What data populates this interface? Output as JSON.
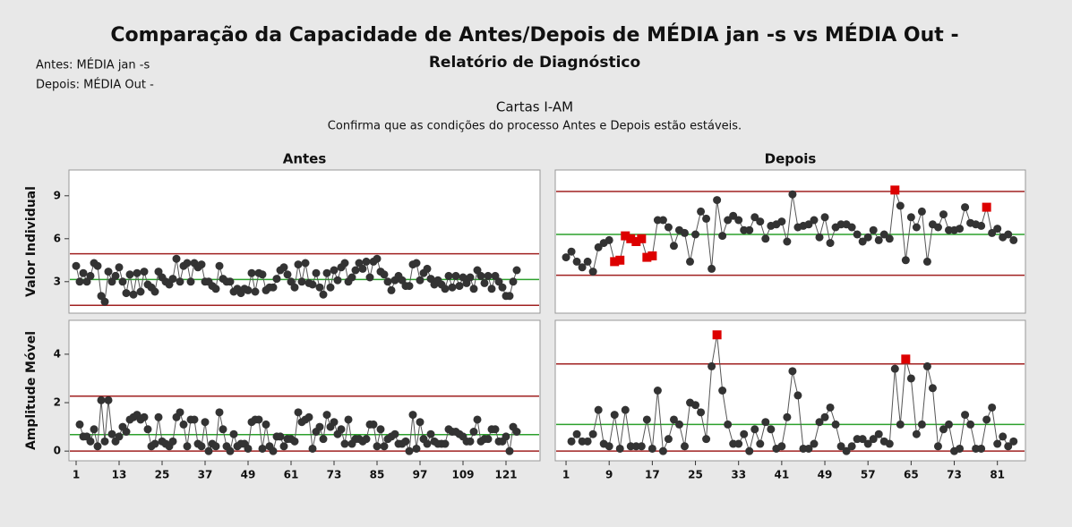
{
  "header": {
    "title": "Comparação da Capacidade de Antes/Depois de MÉDIA jan -s vs MÉDIA Out -",
    "subtitle": "Relatório de Diagnóstico",
    "before": "Antes: MÉDIA jan -s",
    "after": "Depois: MÉDIA Out -",
    "section_title": "Cartas I-AM",
    "section_subtitle": "Confirma que as condições do processo Antes e Depois estão estáveis."
  },
  "chart_data": [
    {
      "type": "line",
      "title": "Antes",
      "ylabel": "Valor Individual",
      "x": [
        1,
        2,
        3,
        4,
        5,
        6,
        7,
        8,
        9,
        10,
        11,
        12,
        13,
        14,
        15,
        16,
        17,
        18,
        19,
        20,
        21,
        22,
        23,
        24,
        25,
        26,
        27,
        28,
        29,
        30,
        31,
        32,
        33,
        34,
        35,
        36,
        37,
        38,
        39,
        40,
        41,
        42,
        43,
        44,
        45,
        46,
        47,
        48,
        49,
        50,
        51,
        52,
        53,
        54,
        55,
        56,
        57,
        58,
        59,
        60,
        61,
        62,
        63,
        64,
        65,
        66,
        67,
        68,
        69,
        70,
        71,
        72,
        73,
        74,
        75,
        76,
        77,
        78,
        79,
        80,
        81,
        82,
        83,
        84,
        85,
        86,
        87,
        88,
        89,
        90,
        91,
        92,
        93,
        94,
        95,
        96,
        97,
        98,
        99,
        100,
        101,
        102,
        103,
        104,
        105,
        106,
        107,
        108,
        109,
        110,
        111,
        112,
        113,
        114,
        115,
        116,
        117,
        118,
        119,
        120,
        121,
        122,
        123,
        124
      ],
      "series": [
        {
          "color": "#333333",
          "values": [
            4.1,
            3.0,
            3.6,
            3.0,
            3.4,
            4.3,
            4.1,
            2.0,
            1.6,
            3.7,
            3.0,
            3.4,
            4.0,
            3.0,
            2.2,
            3.5,
            2.1,
            3.6,
            2.3,
            3.7,
            2.8,
            2.6,
            2.3,
            3.7,
            3.3,
            3.0,
            2.8,
            3.2,
            4.6,
            3.0,
            4.1,
            4.3,
            3.0,
            4.3,
            4.0,
            4.2,
            3.0,
            3.0,
            2.7,
            2.5,
            4.1,
            3.2,
            3.0,
            3.0,
            2.3,
            2.5,
            2.2,
            2.5,
            2.4,
            3.6,
            2.3,
            3.6,
            3.5,
            2.4,
            2.6,
            2.6,
            3.2,
            3.8,
            4.0,
            3.5,
            3.0,
            2.6,
            4.2,
            3.0,
            4.3,
            2.9,
            2.8,
            3.6,
            2.6,
            2.1,
            3.6,
            2.6,
            3.8,
            3.1,
            4.0,
            4.3,
            3.0,
            3.3,
            3.8,
            4.3,
            3.9,
            4.4,
            3.3,
            4.4,
            4.6,
            3.7,
            3.5,
            3.0,
            2.4,
            3.1,
            3.4,
            3.1,
            2.7,
            2.7,
            4.2,
            4.3,
            3.1,
            3.6,
            3.9,
            3.2,
            2.8,
            3.1,
            2.8,
            2.5,
            3.4,
            2.6,
            3.4,
            2.7,
            3.3,
            2.9,
            3.3,
            2.5,
            3.8,
            3.4,
            2.9,
            3.4,
            2.5,
            3.4,
            3.0,
            2.6,
            2.0,
            2.0,
            3.0,
            3.8
          ]
        }
      ],
      "flagged": [],
      "flag_color": "#dd0000",
      "limits": [
        {
          "value": 4.95,
          "color": "#a02020"
        },
        {
          "value": 3.15,
          "color": "#2ca02c"
        },
        {
          "value": 1.35,
          "color": "#a02020"
        }
      ],
      "xlim": [
        -1,
        130.5
      ],
      "ylim": [
        0.8,
        10.8
      ],
      "yticks": [
        3,
        6,
        9
      ]
    },
    {
      "type": "line",
      "title": "Depois",
      "x": [
        1,
        2,
        3,
        4,
        5,
        6,
        7,
        8,
        9,
        10,
        11,
        12,
        13,
        14,
        15,
        16,
        17,
        18,
        19,
        20,
        21,
        22,
        23,
        24,
        25,
        26,
        27,
        28,
        29,
        30,
        31,
        32,
        33,
        34,
        35,
        36,
        37,
        38,
        39,
        40,
        41,
        42,
        43,
        44,
        45,
        46,
        47,
        48,
        49,
        50,
        51,
        52,
        53,
        54,
        55,
        56,
        57,
        58,
        59,
        60,
        61,
        62,
        63,
        64,
        65,
        66,
        67,
        68,
        69,
        70,
        71,
        72,
        73,
        74,
        75,
        76,
        77,
        78,
        79,
        80,
        81,
        82,
        83,
        84
      ],
      "series": [
        {
          "color": "#333333",
          "values": [
            4.7,
            5.1,
            4.4,
            4.0,
            4.4,
            3.7,
            5.4,
            5.7,
            5.9,
            4.4,
            4.5,
            6.2,
            6.0,
            5.8,
            6.0,
            4.7,
            4.8,
            7.3,
            7.3,
            6.8,
            5.5,
            6.6,
            6.4,
            4.4,
            6.3,
            7.9,
            7.4,
            3.9,
            8.7,
            6.2,
            7.3,
            7.6,
            7.3,
            6.6,
            6.6,
            7.5,
            7.2,
            6.0,
            6.9,
            7.0,
            7.2,
            5.8,
            9.1,
            6.8,
            6.9,
            7.0,
            7.3,
            6.1,
            7.5,
            5.7,
            6.8,
            7.0,
            7.0,
            6.8,
            6.3,
            5.8,
            6.1,
            6.6,
            5.9,
            6.3,
            6.0,
            9.4,
            8.3,
            4.5,
            7.5,
            6.8,
            7.9,
            4.4,
            7.0,
            6.8,
            7.7,
            6.6,
            6.6,
            6.7,
            8.2,
            7.1,
            7.0,
            6.9,
            8.2,
            6.4,
            6.7,
            6.1,
            6.3,
            5.9
          ]
        }
      ],
      "flagged": [
        9,
        10,
        11,
        12,
        13,
        14,
        15,
        16,
        61,
        78
      ],
      "flag_color": "#dd0000",
      "limits": [
        {
          "value": 9.3,
          "color": "#a02020"
        },
        {
          "value": 6.3,
          "color": "#2ca02c"
        },
        {
          "value": 3.45,
          "color": "#a02020"
        }
      ],
      "xlim": [
        -1,
        86.2
      ],
      "ylim": [
        0.8,
        10.8
      ]
    },
    {
      "type": "line",
      "ylabel": "Amplitude Móvel",
      "x": [
        1,
        2,
        3,
        4,
        5,
        6,
        7,
        8,
        9,
        10,
        11,
        12,
        13,
        14,
        15,
        16,
        17,
        18,
        19,
        20,
        21,
        22,
        23,
        24,
        25,
        26,
        27,
        28,
        29,
        30,
        31,
        32,
        33,
        34,
        35,
        36,
        37,
        38,
        39,
        40,
        41,
        42,
        43,
        44,
        45,
        46,
        47,
        48,
        49,
        50,
        51,
        52,
        53,
        54,
        55,
        56,
        57,
        58,
        59,
        60,
        61,
        62,
        63,
        64,
        65,
        66,
        67,
        68,
        69,
        70,
        71,
        72,
        73,
        74,
        75,
        76,
        77,
        78,
        79,
        80,
        81,
        82,
        83,
        84,
        85,
        86,
        87,
        88,
        89,
        90,
        91,
        92,
        93,
        94,
        95,
        96,
        97,
        98,
        99,
        100,
        101,
        102,
        103,
        104,
        105,
        106,
        107,
        108,
        109,
        110,
        111,
        112,
        113,
        114,
        115,
        116,
        117,
        118,
        119,
        120,
        121,
        122,
        123,
        124
      ],
      "series": [
        {
          "color": "#333333",
          "values": [
            null,
            1.1,
            0.6,
            0.6,
            0.4,
            0.9,
            0.2,
            2.1,
            0.4,
            2.1,
            0.7,
            0.4,
            0.6,
            1.0,
            0.8,
            1.3,
            1.4,
            1.5,
            1.3,
            1.4,
            0.9,
            0.2,
            0.3,
            1.4,
            0.4,
            0.3,
            0.2,
            0.4,
            1.4,
            1.6,
            1.1,
            0.2,
            1.3,
            1.3,
            0.3,
            0.2,
            1.2,
            0.0,
            0.3,
            0.2,
            1.6,
            0.9,
            0.2,
            0.0,
            0.7,
            0.2,
            0.3,
            0.3,
            0.1,
            1.2,
            1.3,
            1.3,
            0.1,
            1.1,
            0.2,
            0.0,
            0.6,
            0.6,
            0.2,
            0.5,
            0.5,
            0.4,
            1.6,
            1.2,
            1.3,
            1.4,
            0.1,
            0.8,
            1.0,
            0.5,
            1.5,
            1.0,
            1.2,
            0.7,
            0.9,
            0.3,
            1.3,
            0.3,
            0.5,
            0.5,
            0.4,
            0.5,
            1.1,
            1.1,
            0.2,
            0.9,
            0.2,
            0.5,
            0.6,
            0.7,
            0.3,
            0.3,
            0.4,
            0.0,
            1.5,
            0.1,
            1.2,
            0.5,
            0.3,
            0.7,
            0.4,
            0.3,
            0.3,
            0.3,
            0.9,
            0.8,
            0.8,
            0.7,
            0.6,
            0.4,
            0.4,
            0.8,
            1.3,
            0.4,
            0.5,
            0.5,
            0.9,
            0.9,
            0.4,
            0.4,
            0.6,
            0.0,
            1.0,
            0.8
          ]
        }
      ],
      "flagged": [],
      "flag_color": "#dd0000",
      "limits": [
        {
          "value": 2.27,
          "color": "#a02020"
        },
        {
          "value": 0.68,
          "color": "#2ca02c"
        },
        {
          "value": 0,
          "color": "#a02020"
        }
      ],
      "xlim": [
        -1,
        130.5
      ],
      "ylim": [
        -0.4,
        5.4
      ],
      "yticks": [
        0,
        2,
        4
      ],
      "xticks": [
        1,
        13,
        25,
        37,
        49,
        61,
        73,
        85,
        97,
        109,
        121
      ]
    },
    {
      "type": "line",
      "x": [
        1,
        2,
        3,
        4,
        5,
        6,
        7,
        8,
        9,
        10,
        11,
        12,
        13,
        14,
        15,
        16,
        17,
        18,
        19,
        20,
        21,
        22,
        23,
        24,
        25,
        26,
        27,
        28,
        29,
        30,
        31,
        32,
        33,
        34,
        35,
        36,
        37,
        38,
        39,
        40,
        41,
        42,
        43,
        44,
        45,
        46,
        47,
        48,
        49,
        50,
        51,
        52,
        53,
        54,
        55,
        56,
        57,
        58,
        59,
        60,
        61,
        62,
        63,
        64,
        65,
        66,
        67,
        68,
        69,
        70,
        71,
        72,
        73,
        74,
        75,
        76,
        77,
        78,
        79,
        80,
        81,
        82,
        83,
        84
      ],
      "series": [
        {
          "color": "#333333",
          "values": [
            null,
            0.4,
            0.7,
            0.4,
            0.4,
            0.7,
            1.7,
            0.3,
            0.2,
            1.5,
            0.1,
            1.7,
            0.2,
            0.2,
            0.2,
            1.3,
            0.1,
            2.5,
            0.0,
            0.5,
            1.3,
            1.1,
            0.2,
            2.0,
            1.9,
            1.6,
            0.5,
            3.5,
            4.8,
            2.5,
            1.1,
            0.3,
            0.3,
            0.7,
            0.0,
            0.9,
            0.3,
            1.2,
            0.9,
            0.1,
            0.2,
            1.4,
            3.3,
            2.3,
            0.1,
            0.1,
            0.3,
            1.2,
            1.4,
            1.8,
            1.1,
            0.2,
            0.0,
            0.2,
            0.5,
            0.5,
            0.3,
            0.5,
            0.7,
            0.4,
            0.3,
            3.4,
            1.1,
            3.8,
            3.0,
            0.7,
            1.1,
            3.5,
            2.6,
            0.2,
            0.9,
            1.1,
            0.0,
            0.1,
            1.5,
            1.1,
            0.1,
            0.1,
            1.3,
            1.8,
            0.3,
            0.6,
            0.2,
            0.4
          ]
        }
      ],
      "flagged": [
        28,
        63
      ],
      "flag_color": "#dd0000",
      "limits": [
        {
          "value": 3.6,
          "color": "#a02020"
        },
        {
          "value": 1.1,
          "color": "#2ca02c"
        },
        {
          "value": 0,
          "color": "#a02020"
        }
      ],
      "xlim": [
        -1,
        86.2
      ],
      "ylim": [
        -0.4,
        5.4
      ],
      "xticks": [
        1,
        9,
        17,
        25,
        33,
        41,
        49,
        57,
        65,
        73,
        81
      ]
    }
  ]
}
